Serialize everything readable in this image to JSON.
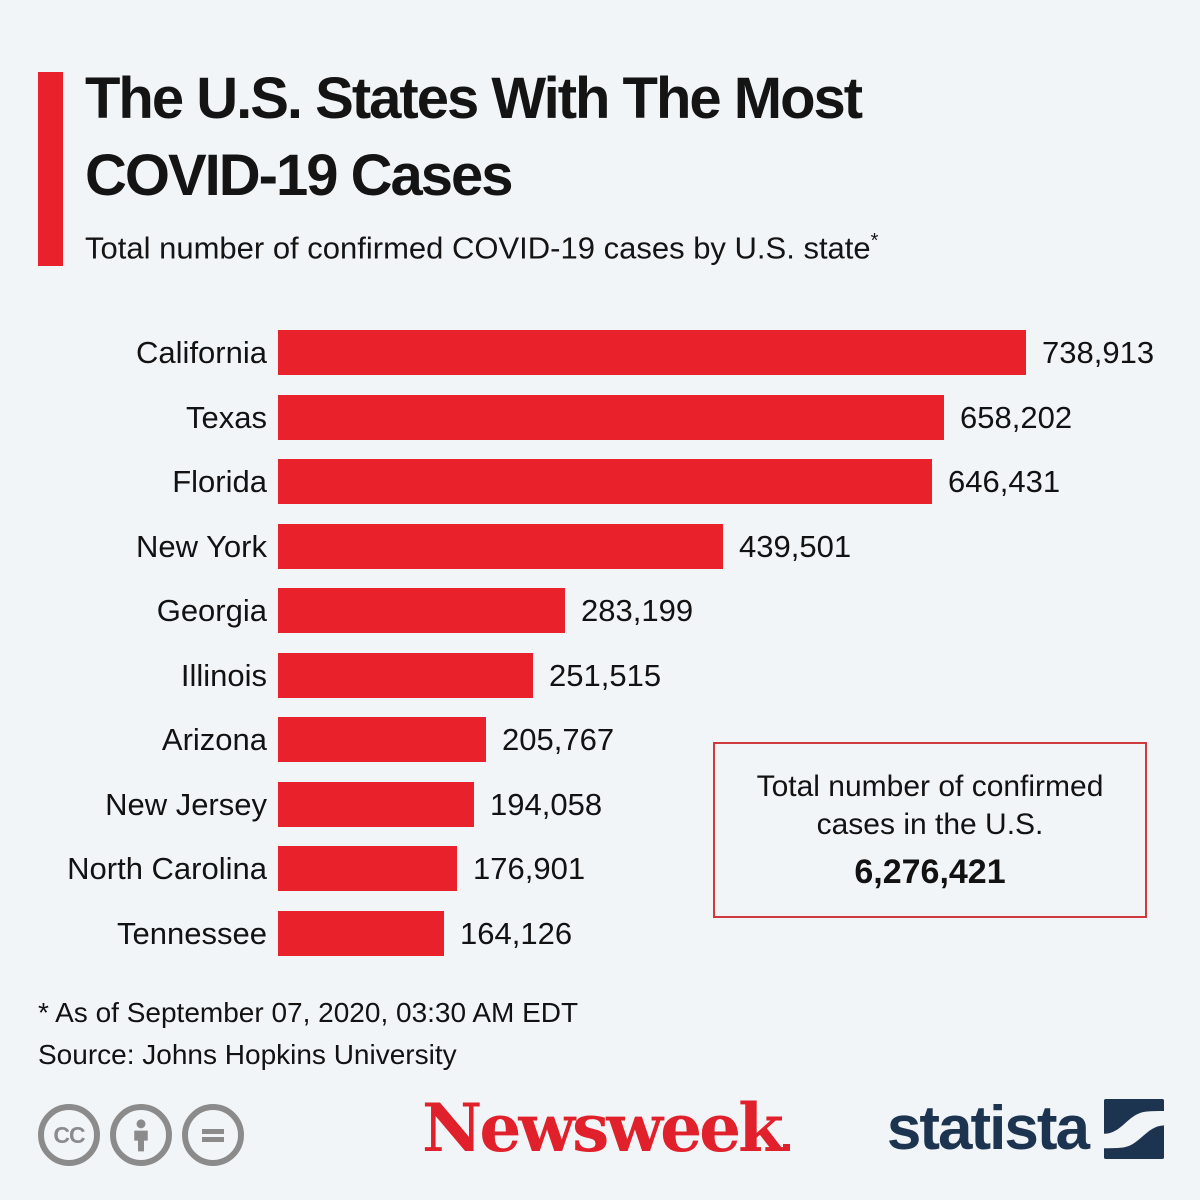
{
  "colors": {
    "background": "#f2f5f8",
    "bar_red": "#e8212a",
    "accent_red": "#e8212a",
    "box_border_red": "#cf3a3f",
    "text_dark": "#121212",
    "newsweek_red": "#e0202a",
    "statista_navy": "#1d3450",
    "cc_gray": "#8b8b8b"
  },
  "header": {
    "title_line1": "The U.S. States With The Most",
    "title_line2": "COVID-19 Cases",
    "subtitle": "Total number of confirmed COVID-19 cases by U.S. state",
    "footnote_marker": "*"
  },
  "chart_data": {
    "type": "bar",
    "orientation": "horizontal",
    "title": "The U.S. States With The Most COVID-19 Cases",
    "xlabel": "",
    "ylabel": "",
    "categories": [
      "California",
      "Texas",
      "Florida",
      "New York",
      "Georgia",
      "Illinois",
      "Arizona",
      "New Jersey",
      "North Carolina",
      "Tennessee"
    ],
    "values": [
      738913,
      658202,
      646431,
      439501,
      283199,
      251515,
      205767,
      194058,
      176901,
      164126
    ],
    "value_labels": [
      "738,913",
      "658,202",
      "646,431",
      "439,501",
      "283,199",
      "251,515",
      "205,767",
      "194,058",
      "176,901",
      "164,126"
    ],
    "xlim": [
      0,
      738913
    ],
    "grid": false,
    "legend": false,
    "bar_color": "#e8212a"
  },
  "annotation_box": {
    "line1": "Total number of confirmed",
    "line2": "cases in the U.S.",
    "total": "6,276,421"
  },
  "footer": {
    "footnote": "* As of September 07, 2020, 03:30 AM EDT",
    "source": "Source: Johns Hopkins University"
  },
  "branding": {
    "cc_text": "CC",
    "newsweek": "Newsweek",
    "statista": "statista"
  }
}
